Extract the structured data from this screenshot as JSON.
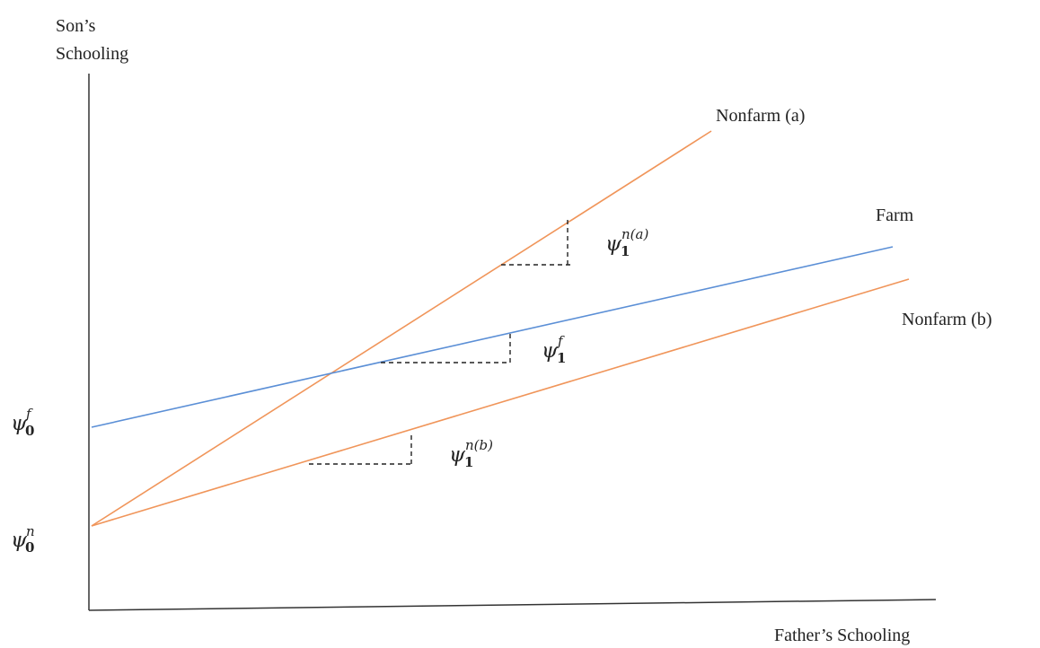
{
  "axes": {
    "y_label_line1": "Son’s",
    "y_label_line2": "Schooling",
    "x_label": "Father’s Schooling"
  },
  "lines": {
    "nonfarm_a": {
      "label": "Nonfarm (a)",
      "color": "#f0955a"
    },
    "farm": {
      "label": "Farm",
      "color": "#5b8fd6"
    },
    "nonfarm_b": {
      "label": "Nonfarm (b)",
      "color": "#f0955a"
    }
  },
  "intercepts": {
    "farm": {
      "symbol": "ψ",
      "sup": "f",
      "sub": "0"
    },
    "nonfarm": {
      "symbol": "ψ",
      "sup": "n",
      "sub": "0"
    }
  },
  "slopes": {
    "nonfarm_a": {
      "symbol": "ψ",
      "sup": "n(a)",
      "sub": "1"
    },
    "farm": {
      "symbol": "ψ",
      "sup": "f",
      "sub": "1"
    },
    "nonfarm_b": {
      "symbol": "ψ",
      "sup": "n(b)",
      "sub": "1"
    }
  }
}
